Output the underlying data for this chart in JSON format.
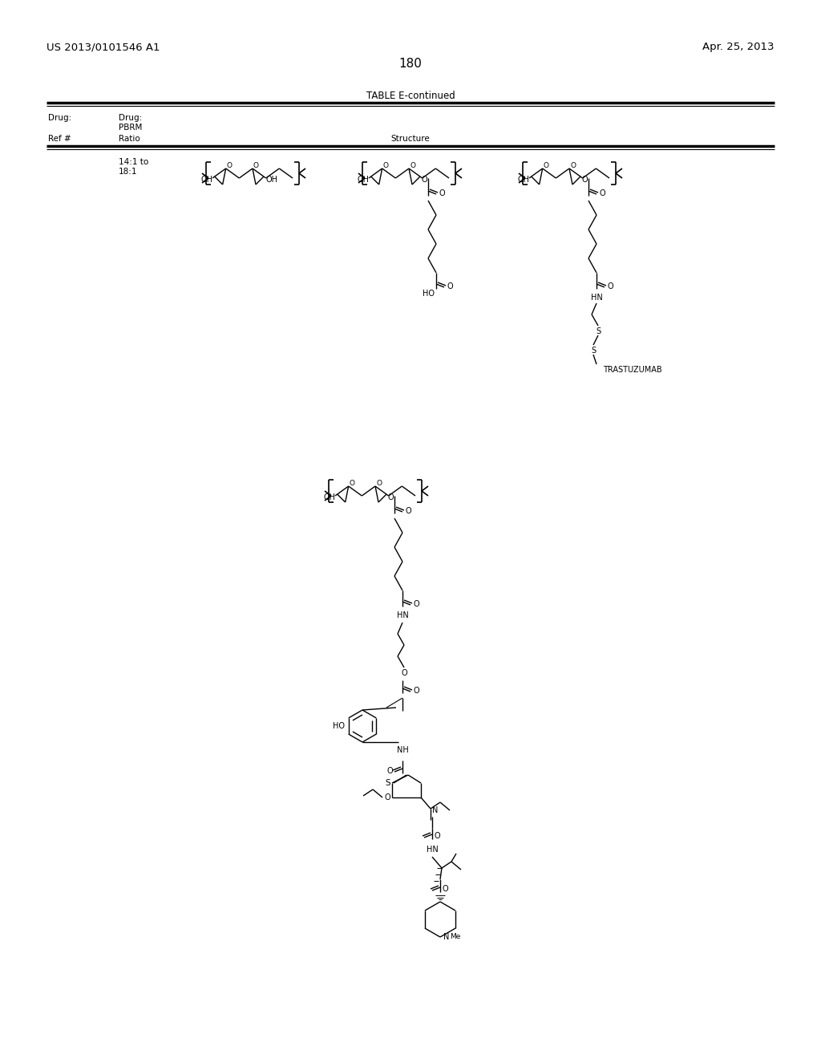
{
  "patent_number": "US 2013/0101546 A1",
  "patent_date": "Apr. 25, 2013",
  "page_number": "180",
  "table_title": "TABLE E-continued",
  "ratio_label_1": "14:1 to",
  "ratio_label_2": "18:1",
  "trastuzumab_label": "TRASTUZUMAB",
  "bg_color": "#ffffff",
  "text_color": "#000000"
}
